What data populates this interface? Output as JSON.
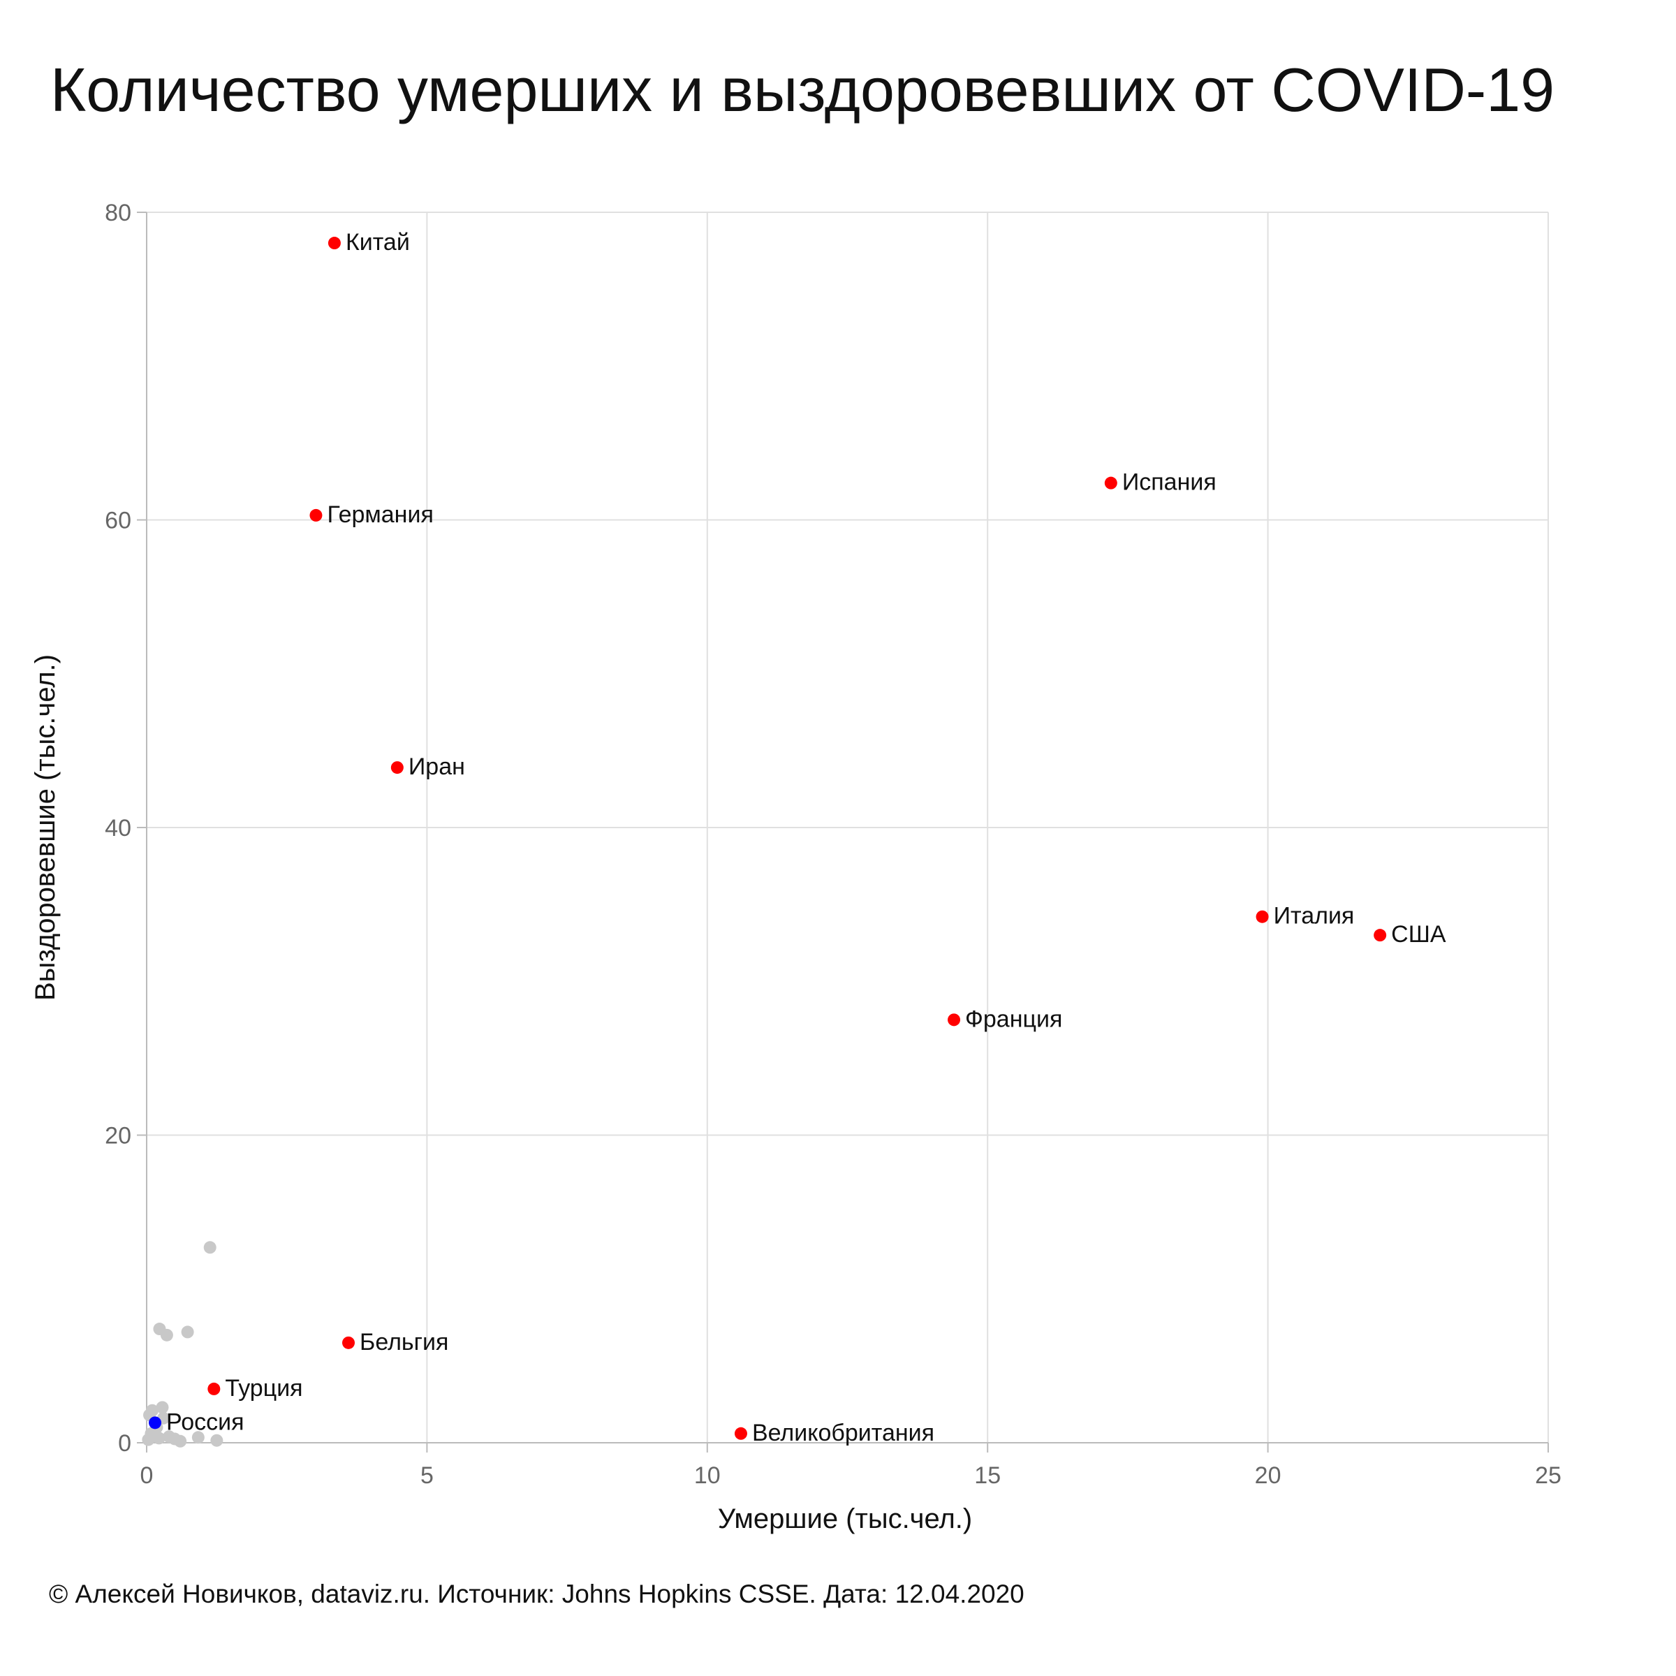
{
  "chart_data": {
    "type": "scatter",
    "title": "Количество умерших и выздоровевших от COVID-19",
    "xlabel": "Умершие (тыс.чел.)",
    "ylabel": "Выздоровевшие (тыс.чел.)",
    "xlim": [
      0,
      25
    ],
    "ylim": [
      0,
      80
    ],
    "xticks": [
      "0",
      "5",
      "10",
      "15",
      "20",
      "25"
    ],
    "yticks": [
      "0",
      "20",
      "40",
      "60",
      "80"
    ],
    "grid": true,
    "colors": {
      "highlight": "#ff0000",
      "russia": "#0000ff",
      "other": "#c8c8c8",
      "grid": "#e0e0e0",
      "axis": "#bbbbbb"
    },
    "labeled_points": [
      {
        "label": "Китай",
        "x": 3.35,
        "y": 78.0,
        "color": "#ff0000"
      },
      {
        "label": "Германия",
        "x": 3.02,
        "y": 60.3,
        "color": "#ff0000"
      },
      {
        "label": "Испания",
        "x": 17.2,
        "y": 62.4,
        "color": "#ff0000"
      },
      {
        "label": "Иран",
        "x": 4.47,
        "y": 43.9,
        "color": "#ff0000"
      },
      {
        "label": "Италия",
        "x": 19.9,
        "y": 34.2,
        "color": "#ff0000"
      },
      {
        "label": "США",
        "x": 22.0,
        "y": 33.0,
        "color": "#ff0000"
      },
      {
        "label": "Франция",
        "x": 14.4,
        "y": 27.5,
        "color": "#ff0000"
      },
      {
        "label": "Бельгия",
        "x": 3.6,
        "y": 6.5,
        "color": "#ff0000"
      },
      {
        "label": "Турция",
        "x": 1.2,
        "y": 3.5,
        "color": "#ff0000"
      },
      {
        "label": "Россия",
        "x": 0.15,
        "y": 1.3,
        "color": "#0000ff"
      },
      {
        "label": "Великобритания",
        "x": 10.6,
        "y": 0.6,
        "color": "#ff0000"
      }
    ],
    "other_points": [
      {
        "x": 1.13,
        "y": 12.7
      },
      {
        "x": 0.23,
        "y": 7.4
      },
      {
        "x": 0.36,
        "y": 7.0
      },
      {
        "x": 0.73,
        "y": 7.2
      },
      {
        "x": 0.28,
        "y": 2.3
      },
      {
        "x": 0.1,
        "y": 2.1
      },
      {
        "x": 0.05,
        "y": 1.8
      },
      {
        "x": 0.3,
        "y": 1.6
      },
      {
        "x": 0.18,
        "y": 1.0
      },
      {
        "x": 0.08,
        "y": 0.6
      },
      {
        "x": 0.4,
        "y": 0.4
      },
      {
        "x": 0.5,
        "y": 0.25
      },
      {
        "x": 0.92,
        "y": 0.35
      },
      {
        "x": 1.25,
        "y": 0.15
      },
      {
        "x": 0.03,
        "y": 0.2
      },
      {
        "x": 0.22,
        "y": 0.3
      },
      {
        "x": 0.6,
        "y": 0.1
      }
    ]
  },
  "footer": {
    "credit": "© Алексей Новичков, dataviz.ru. Источник: Johns Hopkins CSSE. Дата: 12.04.2020"
  }
}
